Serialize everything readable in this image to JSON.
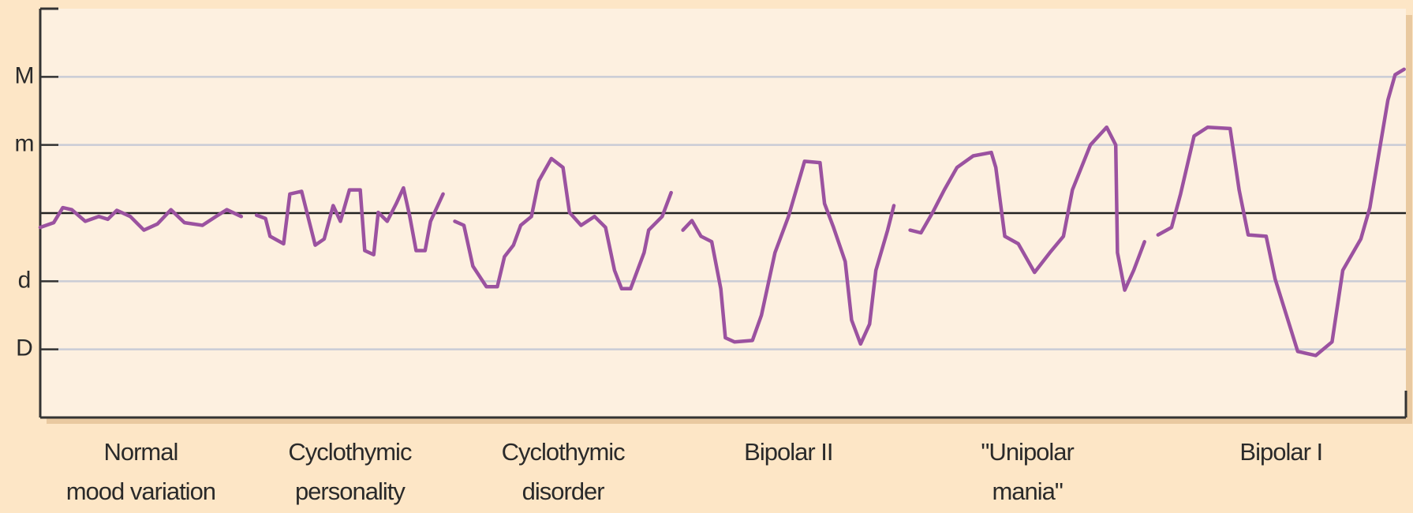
{
  "chart_data": {
    "type": "line",
    "categories": [
      "Normal\nmood variation",
      "Cyclothymic\npersonality",
      "Cyclothymic\ndisorder",
      "Bipolar II",
      "\"Unipolar\nmania\"",
      "Bipolar I"
    ],
    "xlim": [
      0,
      100
    ],
    "ylim": [
      -3,
      3
    ],
    "yticks": [
      {
        "value": 2,
        "label": "M"
      },
      {
        "value": 1,
        "label": "m"
      },
      {
        "value": -1,
        "label": "d"
      },
      {
        "value": -2,
        "label": "D"
      }
    ],
    "grid": true,
    "series": [
      {
        "color": "#9b52a0",
        "x": [
          0,
          0.99,
          1.65,
          2.31,
          3.3,
          4.29,
          4.95,
          5.61,
          6.6,
          7.59,
          8.58,
          9.57,
          10.56,
          11.88,
          12.87,
          13.66,
          14.72
        ],
        "values": [
          -0.21,
          -0.14,
          0.08,
          0.05,
          -0.12,
          -0.05,
          -0.09,
          0.04,
          -0.05,
          -0.25,
          -0.16,
          0.05,
          -0.14,
          -0.18,
          -0.05,
          0.05,
          -0.05
        ]
      },
      {
        "color": "#9b52a0",
        "x": [
          15.84,
          16.5,
          16.83,
          17.82,
          18.28,
          19.14,
          19.6,
          20.13,
          20.79,
          21.45,
          21.98,
          22.64,
          23.43,
          23.76,
          24.42,
          24.75,
          25.41,
          26.07,
          26.6,
          27.06,
          27.52,
          28.18,
          28.58,
          29.5
        ],
        "values": [
          -0.03,
          -0.08,
          -0.34,
          -0.45,
          0.28,
          0.32,
          -0.05,
          -0.47,
          -0.38,
          0.11,
          -0.12,
          0.34,
          0.34,
          -0.55,
          -0.61,
          0.01,
          -0.12,
          0.14,
          0.37,
          -0.05,
          -0.55,
          -0.55,
          -0.12,
          0.28
        ]
      },
      {
        "color": "#9b52a0",
        "x": [
          30.36,
          31.02,
          31.68,
          32.67,
          33.47,
          33.99,
          34.65,
          35.18,
          35.97,
          36.5,
          37.43,
          38.28,
          38.75,
          39.6,
          40.59,
          41.39,
          42.05,
          42.57,
          43.23,
          44.22,
          44.55,
          45.54,
          46.2
        ],
        "values": [
          -0.12,
          -0.18,
          -0.78,
          -1.08,
          -1.08,
          -0.64,
          -0.47,
          -0.18,
          -0.05,
          0.47,
          0.8,
          0.67,
          0.01,
          -0.18,
          -0.05,
          -0.21,
          -0.84,
          -1.11,
          -1.11,
          -0.58,
          -0.25,
          -0.05,
          0.3
        ]
      },
      {
        "color": "#9b52a0",
        "x": [
          47.06,
          47.72,
          48.38,
          49.17,
          49.83,
          50.17,
          50.83,
          52.15,
          52.81,
          53.8,
          54.79,
          55.97,
          57.1,
          57.43,
          58.09,
          58.94,
          59.41,
          60.07,
          60.73,
          61.19,
          62.05,
          62.51
        ],
        "values": [
          -0.25,
          -0.11,
          -0.34,
          -0.42,
          -1.11,
          -1.83,
          -1.89,
          -1.87,
          -1.5,
          -0.58,
          -0.05,
          0.76,
          0.74,
          0.14,
          -0.21,
          -0.71,
          -1.57,
          -1.92,
          -1.63,
          -0.84,
          -0.25,
          0.11
        ]
      },
      {
        "color": "#9b52a0",
        "x": [
          63.7,
          64.49,
          65.35,
          66.2,
          67.13,
          68.32,
          69.64,
          69.97,
          70.63,
          71.62,
          72.81,
          73.93,
          74.92,
          75.58,
          76.9,
          78.09,
          78.75,
          78.88,
          79.41,
          80.07,
          80.86
        ],
        "values": [
          -0.25,
          -0.29,
          0.01,
          0.34,
          0.67,
          0.84,
          0.89,
          0.67,
          -0.34,
          -0.45,
          -0.87,
          -0.58,
          -0.34,
          0.34,
          1,
          1.26,
          1,
          -0.58,
          -1.13,
          -0.84,
          -0.42
        ]
      },
      {
        "color": "#9b52a0",
        "x": [
          81.85,
          82.84,
          83.5,
          84.49,
          85.48,
          87.13,
          87.79,
          88.45,
          89.77,
          90.43,
          92.08,
          93.4,
          94.59,
          95.38,
          96.7,
          97.36,
          98.02,
          98.68,
          99.21,
          99.87
        ],
        "values": [
          -0.32,
          -0.21,
          0.28,
          1.13,
          1.26,
          1.24,
          0.34,
          -0.32,
          -0.34,
          -0.97,
          -2.03,
          -2.09,
          -1.89,
          -0.84,
          -0.38,
          0.08,
          0.87,
          1.66,
          2.03,
          2.11
        ]
      }
    ]
  }
}
